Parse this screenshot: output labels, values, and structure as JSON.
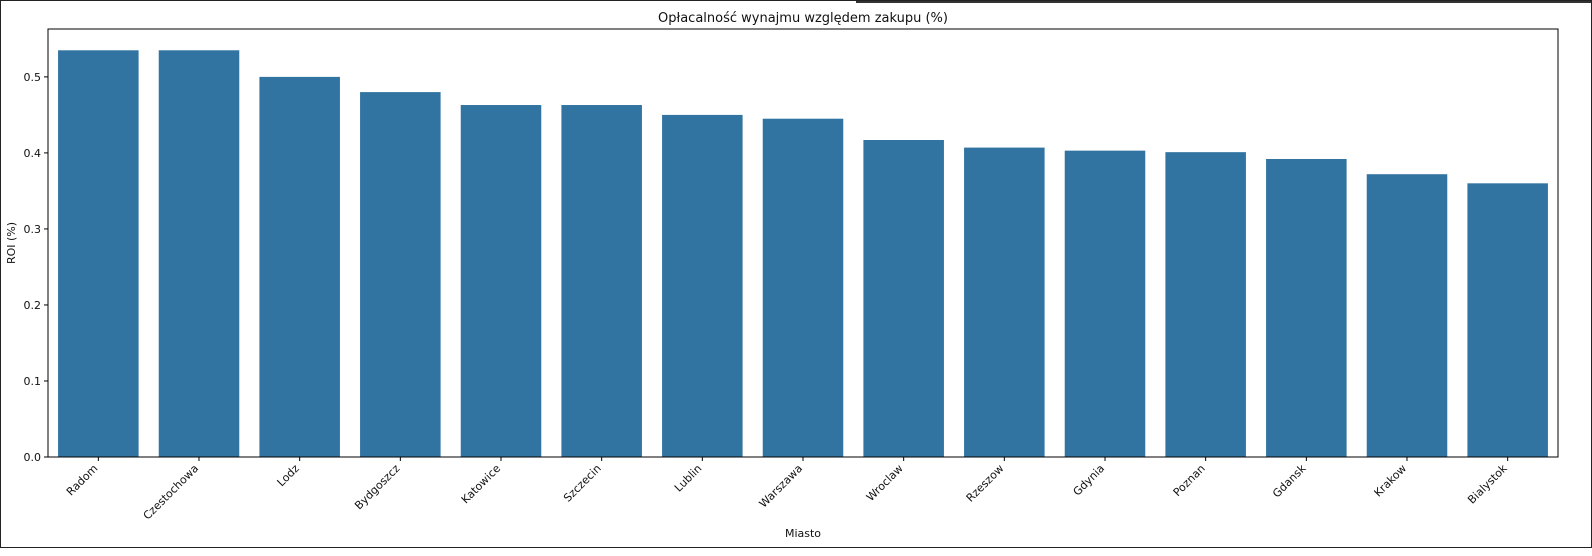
{
  "chart_data": {
    "type": "bar",
    "title": "Opłacalność wynajmu względem zakupu (%)",
    "xlabel": "Miasto",
    "ylabel": "ROI (%)",
    "categories": [
      "Radom",
      "Czestochowa",
      "Lodz",
      "Bydgoszcz",
      "Katowice",
      "Szczecin",
      "Lublin",
      "Warszawa",
      "Wroclaw",
      "Rzeszow",
      "Gdynia",
      "Poznan",
      "Gdansk",
      "Krakow",
      "Bialystok"
    ],
    "values": [
      0.535,
      0.535,
      0.5,
      0.48,
      0.463,
      0.463,
      0.45,
      0.445,
      0.417,
      0.407,
      0.403,
      0.401,
      0.392,
      0.372,
      0.36
    ],
    "ylim": [
      0,
      0.563
    ],
    "yticks": [
      "0.0",
      "0.1",
      "0.2",
      "0.3",
      "0.4",
      "0.5"
    ],
    "bar_color": "#3274a1",
    "grid": false,
    "legend": "none"
  }
}
